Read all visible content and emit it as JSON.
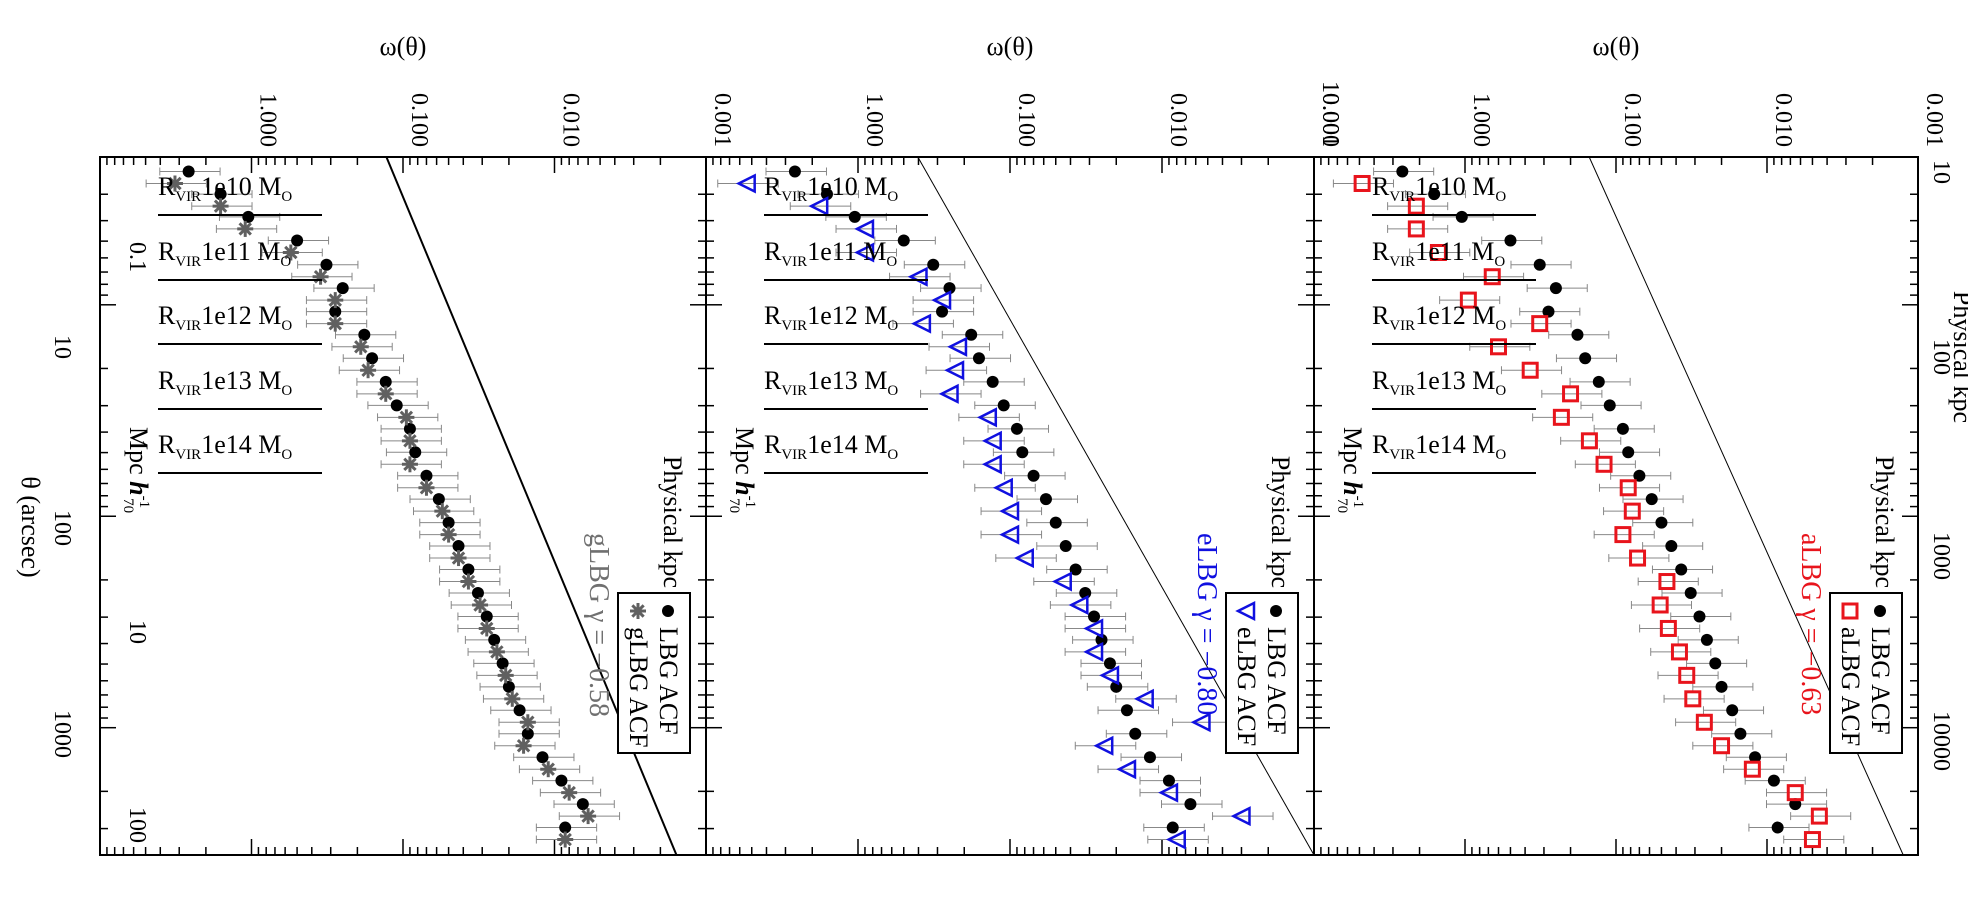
{
  "chart_data": [
    {
      "type": "scatter",
      "orientation": "rotated-90",
      "ylabel": "ω(θ)",
      "xlabel": "",
      "top_axis_label": "Physical kpc",
      "top_axis_ticks": [
        "10",
        "100",
        "1000",
        "10000"
      ],
      "ylim": [
        0.001,
        10.0
      ],
      "xlim": [
        2.0,
        4000
      ],
      "yscale": "log",
      "xscale": "log",
      "ytick_labels": [
        "0.001",
        "0.010",
        "0.100",
        "1.000",
        "10.000"
      ],
      "legend": [
        "LBG ACF",
        "aLBG ACF"
      ],
      "legend_position": "bottom-right",
      "gamma_label": "aLBG γ = −0.63",
      "rvir_labels": [
        "R",
        "1e10 M",
        "R",
        "1e11 M",
        "R",
        "1e12 M",
        "R",
        "1e13 M",
        "R",
        "1e14 M"
      ],
      "rvir_sub": "VIR",
      "rvir_subo": "O",
      "mpc_label": "Mpc ",
      "mpc_h": "h",
      "mpc_exp": "-1",
      "mpc_sub": "70",
      "fit": {
        "a": 0.003,
        "slope": -0.63
      },
      "series": [
        {
          "name": "LBG ACF",
          "marker": "circle",
          "color": "#000000",
          "x": [
            2.5,
            3.2,
            4.1,
            5.3,
            6.9,
            8.9,
            11.5,
            14.8,
            19.1,
            24.7,
            31.9,
            41.2,
            53.2,
            68.7,
            88.6,
            114.4,
            147.7,
            190.7,
            246.2,
            317.9,
            410.4,
            529.8,
            684,
            883,
            1140,
            1472,
            1900,
            2453,
            3167
          ],
          "y": [
            2.6,
            1.6,
            1.05,
            0.5,
            0.32,
            0.25,
            0.28,
            0.18,
            0.16,
            0.13,
            0.11,
            0.09,
            0.083,
            0.07,
            0.058,
            0.05,
            0.043,
            0.037,
            0.032,
            0.028,
            0.025,
            0.022,
            0.02,
            0.017,
            0.015,
            0.012,
            0.009,
            0.0065,
            0.0085
          ]
        },
        {
          "name": "aLBG ACF",
          "marker": "square",
          "color": "#e8141c",
          "x": [
            2.5,
            3.2,
            4.1,
            5.3,
            6.9,
            8.9,
            11.5,
            14.8,
            19.1,
            24.7,
            31.9,
            41.2,
            53.2,
            68.7,
            88.6,
            114.4,
            147.7,
            190.7,
            246.2,
            317.9,
            410.4,
            529.8,
            684,
            883,
            1140,
            1472,
            1900,
            2453,
            3167
          ],
          "y": [
            4.8,
            2.1,
            2.1,
            1.5,
            0.66,
            0.95,
            0.32,
            0.6,
            0.37,
            0.2,
            0.23,
            0.15,
            0.12,
            0.083,
            0.078,
            0.09,
            0.072,
            0.046,
            0.051,
            0.045,
            0.038,
            0.034,
            0.031,
            0.026,
            0.02,
            0.0125,
            0.0065,
            0.0045,
            0.005
          ]
        }
      ]
    },
    {
      "type": "scatter",
      "orientation": "rotated-90",
      "ylabel": "ω(θ)",
      "xlabel": "",
      "top_axis_label": "Physical kpc",
      "ylim": [
        0.001,
        10.0
      ],
      "xlim": [
        2.0,
        4000
      ],
      "yscale": "log",
      "xscale": "log",
      "ytick_labels": [
        "0.001",
        "0.010",
        "0.100",
        "1.000"
      ],
      "legend": [
        "LBG ACF",
        "eLBG ACF"
      ],
      "legend_position": "bottom-right",
      "gamma_label": "eLBG γ = −0.80",
      "rvir_labels": [
        "R",
        "1e10 M",
        "R",
        "1e11 M",
        "R",
        "1e12 M",
        "R",
        "1e13 M",
        "R",
        "1e14 M"
      ],
      "rvir_sub": "VIR",
      "rvir_subo": "O",
      "mpc_label": "Mpc ",
      "mpc_h": "h",
      "mpc_exp": "-1",
      "mpc_sub": "70",
      "fit": {
        "a": 0.0028,
        "slope": -0.8
      },
      "series": [
        {
          "name": "LBG ACF",
          "marker": "circle",
          "color": "#000000",
          "x": [
            2.5,
            3.2,
            4.1,
            5.3,
            6.9,
            8.9,
            11.5,
            14.8,
            19.1,
            24.7,
            31.9,
            41.2,
            53.2,
            68.7,
            88.6,
            114.4,
            147.7,
            190.7,
            246.2,
            317.9,
            410.4,
            529.8,
            684,
            883,
            1140,
            1472,
            1900,
            2453,
            3167
          ],
          "y": [
            2.6,
            1.6,
            1.05,
            0.5,
            0.32,
            0.25,
            0.28,
            0.18,
            0.16,
            0.13,
            0.11,
            0.09,
            0.083,
            0.07,
            0.058,
            0.05,
            0.043,
            0.037,
            0.032,
            0.028,
            0.025,
            0.022,
            0.02,
            0.017,
            0.015,
            0.012,
            0.009,
            0.0065,
            0.0085
          ]
        },
        {
          "name": "eLBG ACF",
          "marker": "triangle",
          "color": "#1010e0",
          "x": [
            2.5,
            3.2,
            4.1,
            5.3,
            6.9,
            8.9,
            11.5,
            14.8,
            19.1,
            24.7,
            31.9,
            41.2,
            53.2,
            68.7,
            88.6,
            114.4,
            147.7,
            190.7,
            246.2,
            317.9,
            410.4,
            529.8,
            684,
            883,
            1140,
            1472,
            1900,
            2453,
            3167
          ],
          "y": [
            5.4,
            1.8,
            0.9,
            0.9,
            0.4,
            0.28,
            0.38,
            0.22,
            0.23,
            0.25,
            0.14,
            0.13,
            0.13,
            0.11,
            0.1,
            0.1,
            0.08,
            0.045,
            0.035,
            0.028,
            0.028,
            0.022,
            0.013,
            0.0055,
            0.024,
            0.017,
            0.009,
            0.003,
            0.008
          ]
        }
      ]
    },
    {
      "type": "scatter",
      "orientation": "rotated-90",
      "ylabel": "ω(θ)",
      "xlabel": "θ (arcsec)",
      "xtick_labels": [
        "10",
        "100",
        "1000"
      ],
      "inner_ticks": [
        "0.1",
        "1",
        "10",
        "100"
      ],
      "top_axis_label": "Physical kpc",
      "ylim": [
        0.001,
        10.0
      ],
      "xlim": [
        2.0,
        4000
      ],
      "yscale": "log",
      "xscale": "log",
      "ytick_labels": [
        "0.001",
        "0.010",
        "0.100",
        "1.000"
      ],
      "legend": [
        "LBG ACF",
        "gLBG ACF"
      ],
      "legend_position": "bottom-right",
      "gamma_label": "gLBG γ = −0.58",
      "rvir_labels": [
        "R",
        "1e10 M",
        "R",
        "1e11 M",
        "R",
        "1e12 M",
        "R",
        "1e13 M",
        "R",
        "1e14 M"
      ],
      "rvir_sub": "VIR",
      "rvir_subo": "O",
      "mpc_label": "Mpc ",
      "mpc_h": "h",
      "mpc_exp": "-1",
      "mpc_sub": "70",
      "fit": {
        "a": 0.0035,
        "slope": -0.58
      },
      "series": [
        {
          "name": "LBG ACF",
          "marker": "circle",
          "color": "#000000",
          "x": [
            2.5,
            3.2,
            4.1,
            5.3,
            6.9,
            8.9,
            11.5,
            14.8,
            19.1,
            24.7,
            31.9,
            41.2,
            53.2,
            68.7,
            88.6,
            114.4,
            147.7,
            190.7,
            246.2,
            317.9,
            410.4,
            529.8,
            684,
            883,
            1140,
            1472,
            1900,
            2453,
            3167
          ],
          "y": [
            2.6,
            1.6,
            1.05,
            0.5,
            0.32,
            0.25,
            0.28,
            0.18,
            0.16,
            0.13,
            0.11,
            0.09,
            0.083,
            0.07,
            0.058,
            0.05,
            0.043,
            0.037,
            0.032,
            0.028,
            0.025,
            0.022,
            0.02,
            0.017,
            0.015,
            0.012,
            0.009,
            0.0065,
            0.0085
          ]
        },
        {
          "name": "gLBG ACF",
          "marker": "asterisk",
          "color": "#606060",
          "x": [
            2.5,
            3.2,
            4.1,
            5.3,
            6.9,
            8.9,
            11.5,
            14.8,
            19.1,
            24.7,
            31.9,
            41.2,
            53.2,
            68.7,
            88.6,
            114.4,
            147.7,
            190.7,
            246.2,
            317.9,
            410.4,
            529.8,
            684,
            883,
            1140,
            1472,
            1900,
            2453,
            3167
          ],
          "y": [
            3.2,
            1.6,
            1.1,
            0.55,
            0.35,
            0.28,
            0.28,
            0.19,
            0.17,
            0.13,
            0.095,
            0.09,
            0.09,
            0.07,
            0.055,
            0.05,
            0.043,
            0.037,
            0.031,
            0.028,
            0.024,
            0.021,
            0.019,
            0.015,
            0.016,
            0.011,
            0.008,
            0.006,
            0.0085
          ]
        }
      ]
    }
  ]
}
